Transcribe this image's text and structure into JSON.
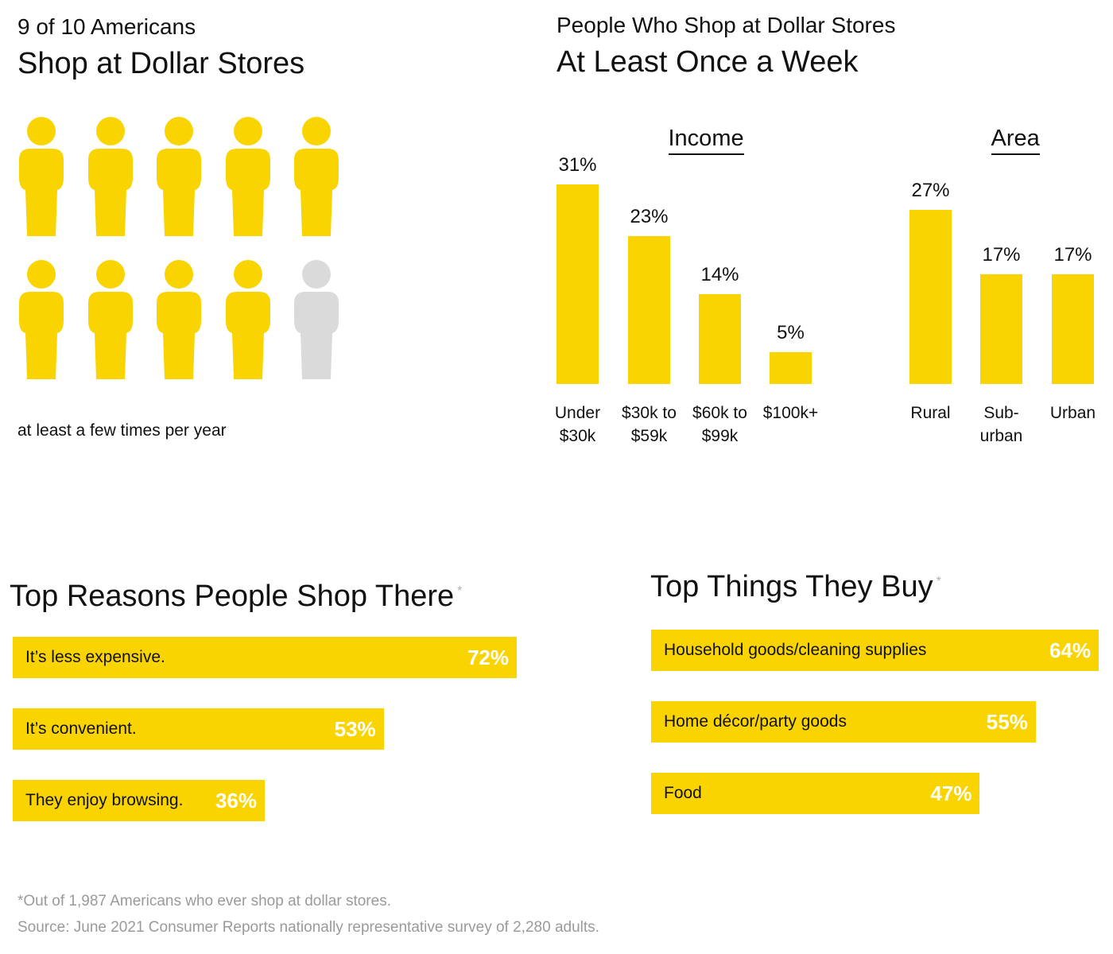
{
  "colors": {
    "accent": "#fad400",
    "inactive": "#dadada",
    "text": "#111111",
    "muted": "#9a9a9a"
  },
  "chart_data": [
    {
      "type": "pictograph",
      "pretitle": "9 of 10 Americans",
      "title": "Shop at Dollar Stores",
      "caption": "at least a few times per year",
      "total": 10,
      "highlighted": 9,
      "icon": "person-icon"
    },
    {
      "type": "bar",
      "pretitle": "People Who Shop at Dollar Stores",
      "title": "At Least Once a Week",
      "groups": [
        {
          "name": "Income",
          "categories": [
            "Under $30k",
            "$30k to $59k",
            "$60k to $99k",
            "$100k+"
          ],
          "category_lines": [
            [
              "Under",
              "$30k"
            ],
            [
              "$30k to",
              "$59k"
            ],
            [
              "$60k to",
              "$99k"
            ],
            [
              "$100k+"
            ]
          ],
          "values": [
            31,
            23,
            14,
            5
          ],
          "labels": [
            "31%",
            "23%",
            "14%",
            "5%"
          ]
        },
        {
          "name": "Area",
          "categories": [
            "Rural",
            "Sub-urban",
            "Urban"
          ],
          "category_lines": [
            [
              "Rural"
            ],
            [
              "Sub-",
              "urban"
            ],
            [
              "Urban"
            ]
          ],
          "values": [
            27,
            17,
            17
          ],
          "labels": [
            "27%",
            "17%",
            "17%"
          ]
        }
      ],
      "ylim": [
        0,
        31
      ],
      "grid": false
    },
    {
      "type": "bar",
      "orientation": "horizontal",
      "title": "Top Reasons People Shop There",
      "title_mark": "*",
      "categories": [
        "It’s less expensive.",
        "It’s convenient.",
        "They enjoy browsing."
      ],
      "values": [
        72,
        53,
        36
      ],
      "labels": [
        "72%",
        "53%",
        "36%"
      ]
    },
    {
      "type": "bar",
      "orientation": "horizontal",
      "title": "Top Things They Buy",
      "title_mark": "*",
      "categories": [
        "Household goods/cleaning supplies",
        "Home décor/party goods",
        "Food"
      ],
      "values": [
        64,
        55,
        47
      ],
      "labels": [
        "64%",
        "55%",
        "47%"
      ]
    }
  ],
  "footnotes": {
    "note": "*Out of 1,987 Americans who ever shop at dollar stores.",
    "source": "Source: June 2021 Consumer Reports nationally representative survey of 2,280 adults."
  }
}
